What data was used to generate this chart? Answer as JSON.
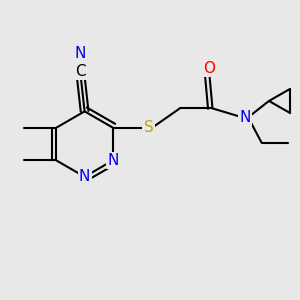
{
  "bg_color": "#e8e8e8",
  "atom_colors": {
    "C": "#000000",
    "N": "#0000ee",
    "O": "#ff0000",
    "S": "#bbaa00",
    "H": "#000000"
  },
  "bond_color": "#000000",
  "bond_width": 1.5,
  "font_size": 11
}
